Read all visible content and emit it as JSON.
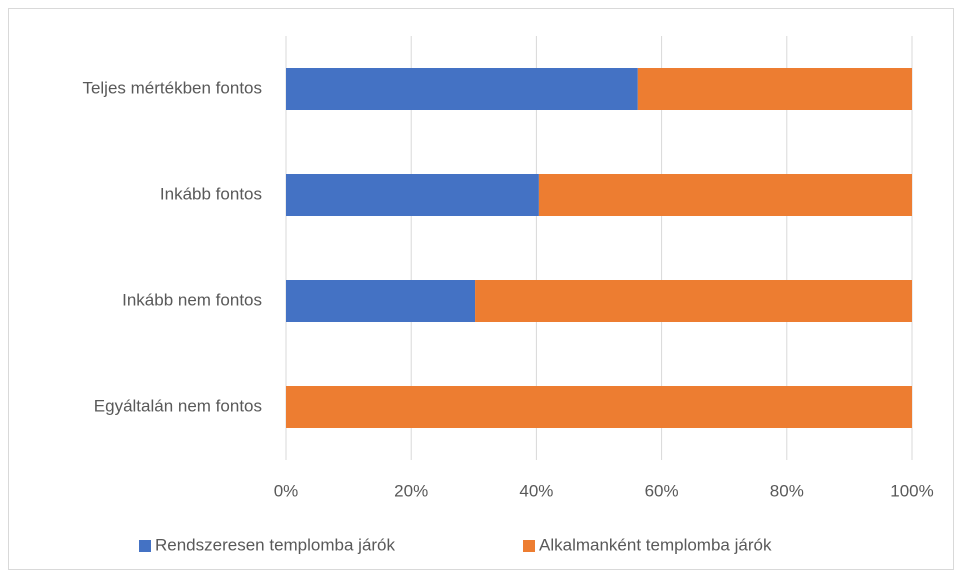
{
  "chart_data": {
    "type": "stacked_bar_horizontal",
    "categories": [
      "Teljes mértékben fontos",
      "Inkább fontos",
      "Inkább nem fontos",
      "Egyáltalán nem fontos"
    ],
    "series": [
      {
        "name": "Rendszeresen templomba járók",
        "color": "#4472c4",
        "values": [
          56.2,
          40.4,
          30.2,
          0
        ]
      },
      {
        "name": "Alkalmanként templomba járók",
        "color": "#ed7d31",
        "values": [
          43.8,
          59.6,
          69.8,
          100
        ]
      }
    ],
    "xlim": [
      0,
      100
    ],
    "xticks": [
      {
        "value": 0,
        "label": "0%"
      },
      {
        "value": 20,
        "label": "20%"
      },
      {
        "value": 40,
        "label": "40%"
      },
      {
        "value": 60,
        "label": "60%"
      },
      {
        "value": 80,
        "label": "80%"
      },
      {
        "value": 100,
        "label": "100%"
      }
    ],
    "grid": true,
    "legend": "bottom"
  }
}
